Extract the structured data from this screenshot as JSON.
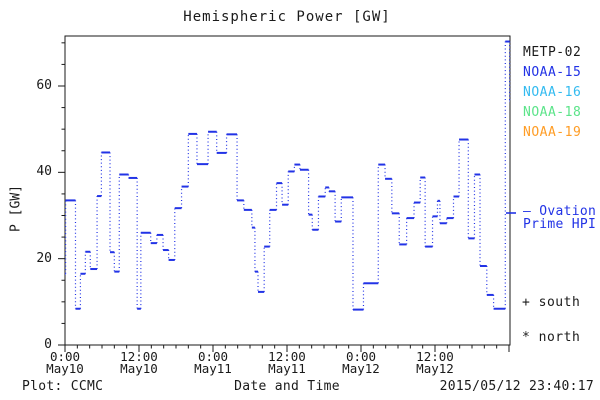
{
  "chart_data": {
    "type": "line",
    "subtype": "step-plot: solid horizontal value segments joined by dotted vertical connectors",
    "title": "Hemispheric Power [GW]",
    "xlabel": "Date and Time",
    "ylabel": "P [GW]",
    "x_unit": "hours since 2015-05-10 00:00",
    "xlim": [
      0,
      72.16
    ],
    "ylim": [
      0,
      71.6
    ],
    "yticks": [
      0,
      20,
      40,
      60
    ],
    "y_minor_tick_step": 5,
    "x_major_tick_step_hours": 12,
    "x_minor_tick_step_hours": 2,
    "grid": false,
    "legend_position": "right-outside",
    "xticks": [
      {
        "hour": 0,
        "time": "0:00",
        "date": "May10"
      },
      {
        "hour": 12,
        "time": "12:00",
        "date": "May10"
      },
      {
        "hour": 24,
        "time": "0:00",
        "date": "May11"
      },
      {
        "hour": 36,
        "time": "12:00",
        "date": "May11"
      },
      {
        "hour": 48,
        "time": "0:00",
        "date": "May12"
      },
      {
        "hour": 60,
        "time": "12:00",
        "date": "May12"
      }
    ],
    "series": [
      {
        "name": "Ovation Prime HPI",
        "color": "#2233e6",
        "points": [
          [
            0.0,
            16.5
          ],
          [
            0.1,
            33.5
          ],
          [
            1.7,
            8.4
          ],
          [
            2.5,
            16.5
          ],
          [
            3.3,
            21.6
          ],
          [
            4.1,
            17.6
          ],
          [
            5.2,
            34.5
          ],
          [
            5.9,
            44.6
          ],
          [
            7.3,
            21.5
          ],
          [
            8.0,
            17.0
          ],
          [
            8.8,
            39.5
          ],
          [
            10.3,
            38.7
          ],
          [
            11.7,
            8.4
          ],
          [
            12.3,
            26.0
          ],
          [
            13.9,
            23.6
          ],
          [
            14.9,
            25.5
          ],
          [
            15.9,
            22.0
          ],
          [
            16.8,
            19.7
          ],
          [
            17.8,
            31.7
          ],
          [
            18.9,
            36.7
          ],
          [
            20.0,
            48.9
          ],
          [
            21.4,
            41.9
          ],
          [
            23.2,
            49.4
          ],
          [
            24.6,
            44.5
          ],
          [
            26.2,
            48.8
          ],
          [
            27.9,
            33.5
          ],
          [
            29.0,
            31.3
          ],
          [
            30.3,
            27.2
          ],
          [
            30.8,
            17.0
          ],
          [
            31.3,
            12.3
          ],
          [
            32.3,
            22.8
          ],
          [
            33.2,
            31.3
          ],
          [
            34.3,
            37.5
          ],
          [
            35.2,
            32.5
          ],
          [
            36.2,
            40.2
          ],
          [
            37.2,
            41.8
          ],
          [
            38.1,
            40.6
          ],
          [
            39.5,
            30.2
          ],
          [
            40.1,
            26.7
          ],
          [
            41.1,
            34.4
          ],
          [
            42.2,
            36.5
          ],
          [
            42.8,
            35.6
          ],
          [
            43.8,
            28.6
          ],
          [
            44.8,
            34.2
          ],
          [
            46.7,
            8.2
          ],
          [
            48.4,
            14.3
          ],
          [
            50.8,
            41.8
          ],
          [
            51.9,
            38.5
          ],
          [
            53.0,
            30.5
          ],
          [
            54.2,
            23.3
          ],
          [
            55.4,
            29.4
          ],
          [
            56.6,
            33.0
          ],
          [
            57.6,
            38.8
          ],
          [
            58.4,
            22.8
          ],
          [
            59.6,
            29.8
          ],
          [
            60.4,
            33.4
          ],
          [
            60.8,
            28.2
          ],
          [
            61.9,
            29.4
          ],
          [
            63.0,
            34.4
          ],
          [
            63.9,
            47.6
          ],
          [
            65.4,
            24.7
          ],
          [
            66.4,
            39.5
          ],
          [
            67.3,
            18.3
          ],
          [
            68.4,
            11.6
          ],
          [
            69.5,
            8.4
          ],
          [
            71.4,
            70.3
          ],
          [
            72.1,
            56.5
          ]
        ]
      }
    ]
  },
  "legend": {
    "items": [
      {
        "label": "METP-02",
        "color": "#1a1a1a"
      },
      {
        "label": "NOAA-15",
        "color": "#2233e6"
      },
      {
        "label": "NOAA-16",
        "color": "#33bbf0"
      },
      {
        "label": "NOAA-18",
        "color": "#5ce48a"
      },
      {
        "label": "NOAA-19",
        "color": "#ff9d26"
      }
    ]
  },
  "side_annotations": {
    "ovation_line1": "— Ovation",
    "ovation_line2": "Prime HPI",
    "ovation_color": "#2233e6",
    "markers": [
      {
        "symbol": "+",
        "label": "south"
      },
      {
        "symbol": "*",
        "label": "north"
      }
    ]
  },
  "footer": {
    "plot_source": "Plot: CCMC",
    "xlabel": "Date and Time",
    "timestamp": "2015/05/12 23:40:17"
  },
  "colors": {
    "axis": "#1a1a1a",
    "line": "#2233e6",
    "background": "#ffffff"
  }
}
